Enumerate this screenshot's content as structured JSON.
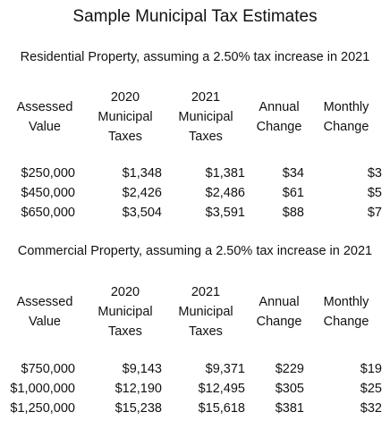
{
  "title": "Sample Municipal Tax Estimates",
  "sections": [
    {
      "heading": "Residential Property, assuming a 2.50% tax increase in 2021",
      "headers": {
        "assessed": [
          "Assessed",
          "Value"
        ],
        "tax2020": [
          "2020",
          "Municipal",
          "Taxes"
        ],
        "tax2021": [
          "2021",
          "Municipal",
          "Taxes"
        ],
        "annual": [
          "Annual",
          "Change"
        ],
        "monthly": [
          "Monthly",
          "Change"
        ]
      },
      "rows": [
        [
          "$250,000",
          "$1,348",
          "$1,381",
          "$34",
          "$3"
        ],
        [
          "$450,000",
          "$2,426",
          "$2,486",
          "$61",
          "$5"
        ],
        [
          "$650,000",
          "$3,504",
          "$3,591",
          "$88",
          "$7"
        ]
      ]
    },
    {
      "heading": "Commercial Property, assuming a 2.50% tax increase in 2021",
      "headers": {
        "assessed": [
          "Assessed",
          "Value"
        ],
        "tax2020": [
          "2020",
          "Municipal",
          "Taxes"
        ],
        "tax2021": [
          "2021",
          "Municipal",
          "Taxes"
        ],
        "annual": [
          "Annual",
          "Change"
        ],
        "monthly": [
          "Monthly",
          "Change"
        ]
      },
      "rows": [
        [
          "$750,000",
          "$9,143",
          "$9,371",
          "$229",
          "$19"
        ],
        [
          "$1,000,000",
          "$12,190",
          "$12,495",
          "$305",
          "$25"
        ],
        [
          "$1,250,000",
          "$15,238",
          "$15,618",
          "$381",
          "$32"
        ]
      ]
    }
  ]
}
